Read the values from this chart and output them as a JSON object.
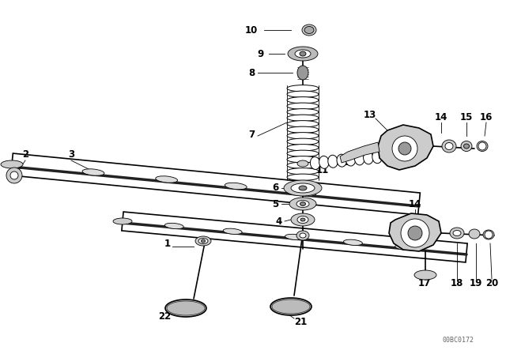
{
  "bg_color": "#ffffff",
  "line_color": "#000000",
  "fig_width": 6.4,
  "fig_height": 4.48,
  "dpi": 100,
  "watermark": "00BC0172",
  "gray_dark": "#333333",
  "gray_mid": "#888888",
  "gray_light": "#cccccc"
}
